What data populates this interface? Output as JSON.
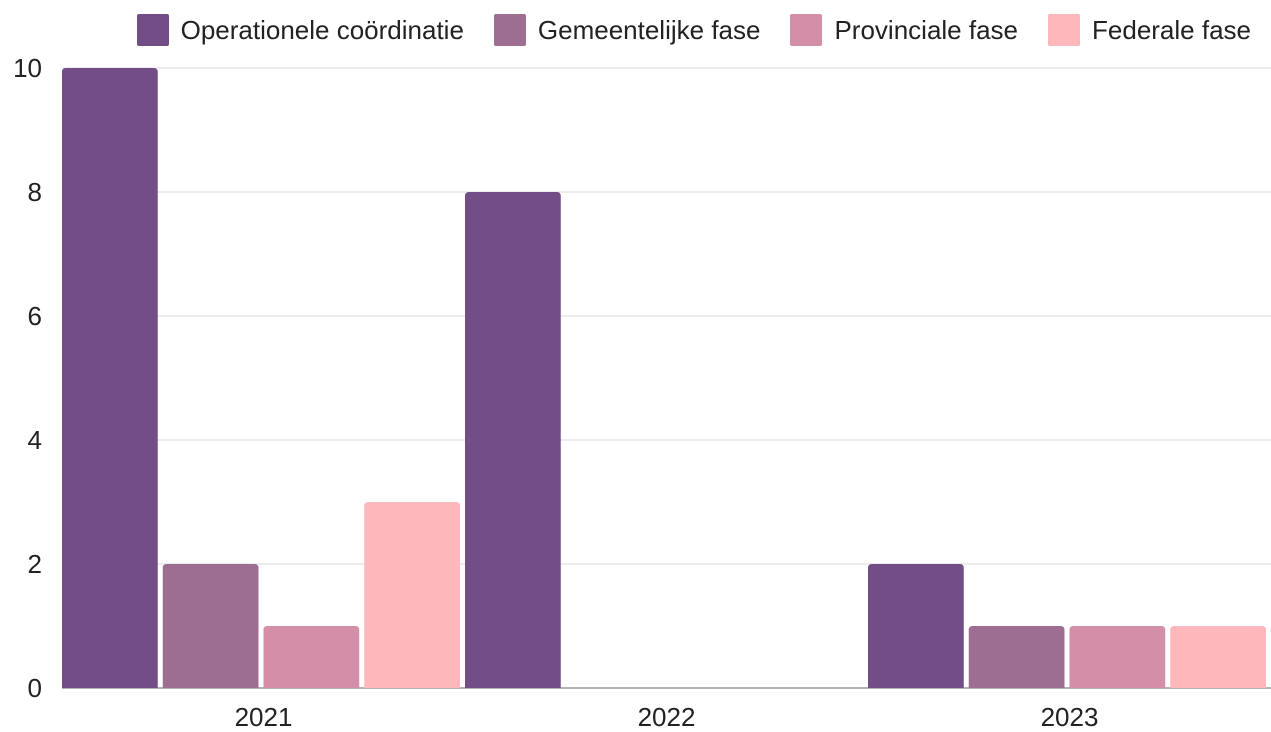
{
  "chart_data": {
    "type": "bar",
    "categories": [
      "2021",
      "2022",
      "2023"
    ],
    "series": [
      {
        "name": "Operationele coördinatie",
        "color": "#734d86",
        "values": [
          10,
          8,
          2
        ]
      },
      {
        "name": "Gemeentelijke fase",
        "color": "#9e6e92",
        "values": [
          2,
          0,
          1
        ]
      },
      {
        "name": "Provinciale fase",
        "color": "#d38fa8",
        "values": [
          1,
          0,
          1
        ]
      },
      {
        "name": "Federale fase",
        "color": "#feb7bb",
        "values": [
          3,
          0,
          1
        ]
      }
    ],
    "yticks": [
      "0",
      "2",
      "4",
      "6",
      "8",
      "10"
    ],
    "ylim": [
      0,
      10
    ],
    "grid": true,
    "legend_position": "top-right"
  }
}
